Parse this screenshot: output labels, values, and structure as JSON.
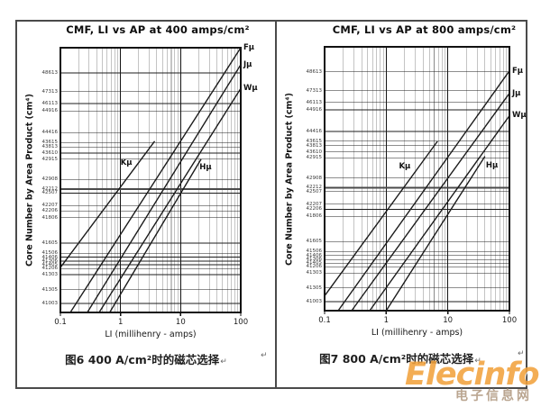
{
  "page": {
    "background": "#ffffff",
    "return_mark": "↵"
  },
  "watermark": {
    "brand": "Elecinfo",
    "subtitle": "电子信息网",
    "brand_color": "#f2a23d",
    "subtitle_color": "#b7a18b"
  },
  "chart_data": [
    {
      "type": "line",
      "title": "CMF, LI vs AP at 400 amps/cm²",
      "caption": "图6 400 A/cm²时的磁芯选择",
      "xlabel": "LI (millihenry - amps)",
      "ylabel": "Core Number by Area Product (cm⁴)",
      "x_scale": "log",
      "xlim": [
        0.1,
        100
      ],
      "grid": "on",
      "y_encoding": "f = vertical fraction from plot top; rows are ferrite core part numbers ordered by area product",
      "xticks": [
        {
          "label": "0.1",
          "value": 0.1
        },
        {
          "label": "1",
          "value": 1
        },
        {
          "label": "10",
          "value": 10
        },
        {
          "label": "100",
          "value": 100
        }
      ],
      "y_rows": [
        {
          "label": "48613",
          "f": 0.095
        },
        {
          "label": "47313",
          "f": 0.166
        },
        {
          "label": "46113",
          "f": 0.211
        },
        {
          "label": "44916",
          "f": 0.239
        },
        {
          "label": "44416",
          "f": 0.321
        },
        {
          "label": "43615",
          "f": 0.358
        },
        {
          "label": "43813",
          "f": 0.375
        },
        {
          "label": "43610",
          "f": 0.398
        },
        {
          "label": "42915",
          "f": 0.421
        },
        {
          "label": "42908",
          "f": 0.497
        },
        {
          "label": "42212",
          "f": 0.534,
          "thick": true
        },
        {
          "label": "42507",
          "f": 0.549
        },
        {
          "label": "42207",
          "f": 0.596
        },
        {
          "label": "42206",
          "f": 0.616
        },
        {
          "label": "41806",
          "f": 0.642
        },
        {
          "label": "41605",
          "f": 0.738
        },
        {
          "label": "41506",
          "f": 0.776
        },
        {
          "label": "41406",
          "f": 0.791
        },
        {
          "label": "41306",
          "f": 0.806
        },
        {
          "label": "41405",
          "f": 0.82
        },
        {
          "label": "41206",
          "f": 0.834
        },
        {
          "label": "41303",
          "f": 0.857
        },
        {
          "label": "41305",
          "f": 0.914
        },
        {
          "label": "41003",
          "f": 0.966
        }
      ],
      "series": [
        {
          "name": "Kμ",
          "x1": 0.1,
          "f1": 0.83,
          "x2": 3.7,
          "f2": 0.353,
          "label_pos": "inline",
          "label_x": 1.25,
          "label_f": 0.435
        },
        {
          "name": "Fμ",
          "x1": 0.146,
          "f1": 1.0,
          "x2": 100,
          "f2": 0.0,
          "label_pos": "right"
        },
        {
          "name": "Jμ",
          "x1": 0.28,
          "f1": 1.0,
          "x2": 100,
          "f2": 0.064,
          "label_pos": "right"
        },
        {
          "name": "Wμ",
          "x1": 0.44,
          "f1": 1.0,
          "x2": 100,
          "f2": 0.154,
          "label_pos": "right"
        },
        {
          "name": "Hμ",
          "x1": 0.66,
          "f1": 1.0,
          "x2": 22,
          "f2": 0.42,
          "label_pos": "inline",
          "label_x": 26,
          "label_f": 0.452
        }
      ]
    },
    {
      "type": "line",
      "title": "CMF, LI vs AP at 800 amps/cm²",
      "caption": "图7 800 A/cm²时的磁芯选择",
      "xlabel": "LI (millihenry - amps)",
      "ylabel": "Core Number by Area Product (cm⁴)",
      "x_scale": "log",
      "xlim": [
        0.1,
        100
      ],
      "grid": "on",
      "y_encoding": "f = vertical fraction from plot top; rows are ferrite core part numbers ordered by area product",
      "xticks": [
        {
          "label": "0.1",
          "value": 0.1
        },
        {
          "label": "1",
          "value": 1
        },
        {
          "label": "10",
          "value": 10
        },
        {
          "label": "100",
          "value": 100
        }
      ],
      "y_rows": [
        {
          "label": "48613",
          "f": 0.095
        },
        {
          "label": "47313",
          "f": 0.166
        },
        {
          "label": "46113",
          "f": 0.211
        },
        {
          "label": "44916",
          "f": 0.239
        },
        {
          "label": "44416",
          "f": 0.321
        },
        {
          "label": "43615",
          "f": 0.358
        },
        {
          "label": "43813",
          "f": 0.375
        },
        {
          "label": "43610",
          "f": 0.398
        },
        {
          "label": "42915",
          "f": 0.421
        },
        {
          "label": "42908",
          "f": 0.497
        },
        {
          "label": "42212",
          "f": 0.534,
          "thick": true
        },
        {
          "label": "42507",
          "f": 0.549
        },
        {
          "label": "42207",
          "f": 0.596
        },
        {
          "label": "42206",
          "f": 0.616
        },
        {
          "label": "41806",
          "f": 0.642
        },
        {
          "label": "41605",
          "f": 0.738
        },
        {
          "label": "41506",
          "f": 0.776
        },
        {
          "label": "41406",
          "f": 0.791
        },
        {
          "label": "41306",
          "f": 0.806
        },
        {
          "label": "41405",
          "f": 0.82
        },
        {
          "label": "41206",
          "f": 0.834
        },
        {
          "label": "41303",
          "f": 0.857
        },
        {
          "label": "41305",
          "f": 0.914
        },
        {
          "label": "41003",
          "f": 0.966
        }
      ],
      "series": [
        {
          "name": "Kμ",
          "x1": 0.1,
          "f1": 0.944,
          "x2": 6.8,
          "f2": 0.358,
          "label_pos": "inline",
          "label_x": 2.0,
          "label_f": 0.455
        },
        {
          "name": "Fμ",
          "x1": 0.166,
          "f1": 1.0,
          "x2": 100,
          "f2": 0.091,
          "label_pos": "right"
        },
        {
          "name": "Jμ",
          "x1": 0.275,
          "f1": 1.0,
          "x2": 100,
          "f2": 0.176,
          "label_pos": "right"
        },
        {
          "name": "Wμ",
          "x1": 0.54,
          "f1": 1.0,
          "x2": 100,
          "f2": 0.261,
          "label_pos": "right"
        },
        {
          "name": "Hμ",
          "x1": 1.0,
          "f1": 1.0,
          "x2": 40,
          "f2": 0.415,
          "label_pos": "inline",
          "label_x": 52,
          "label_f": 0.452
        }
      ]
    }
  ]
}
